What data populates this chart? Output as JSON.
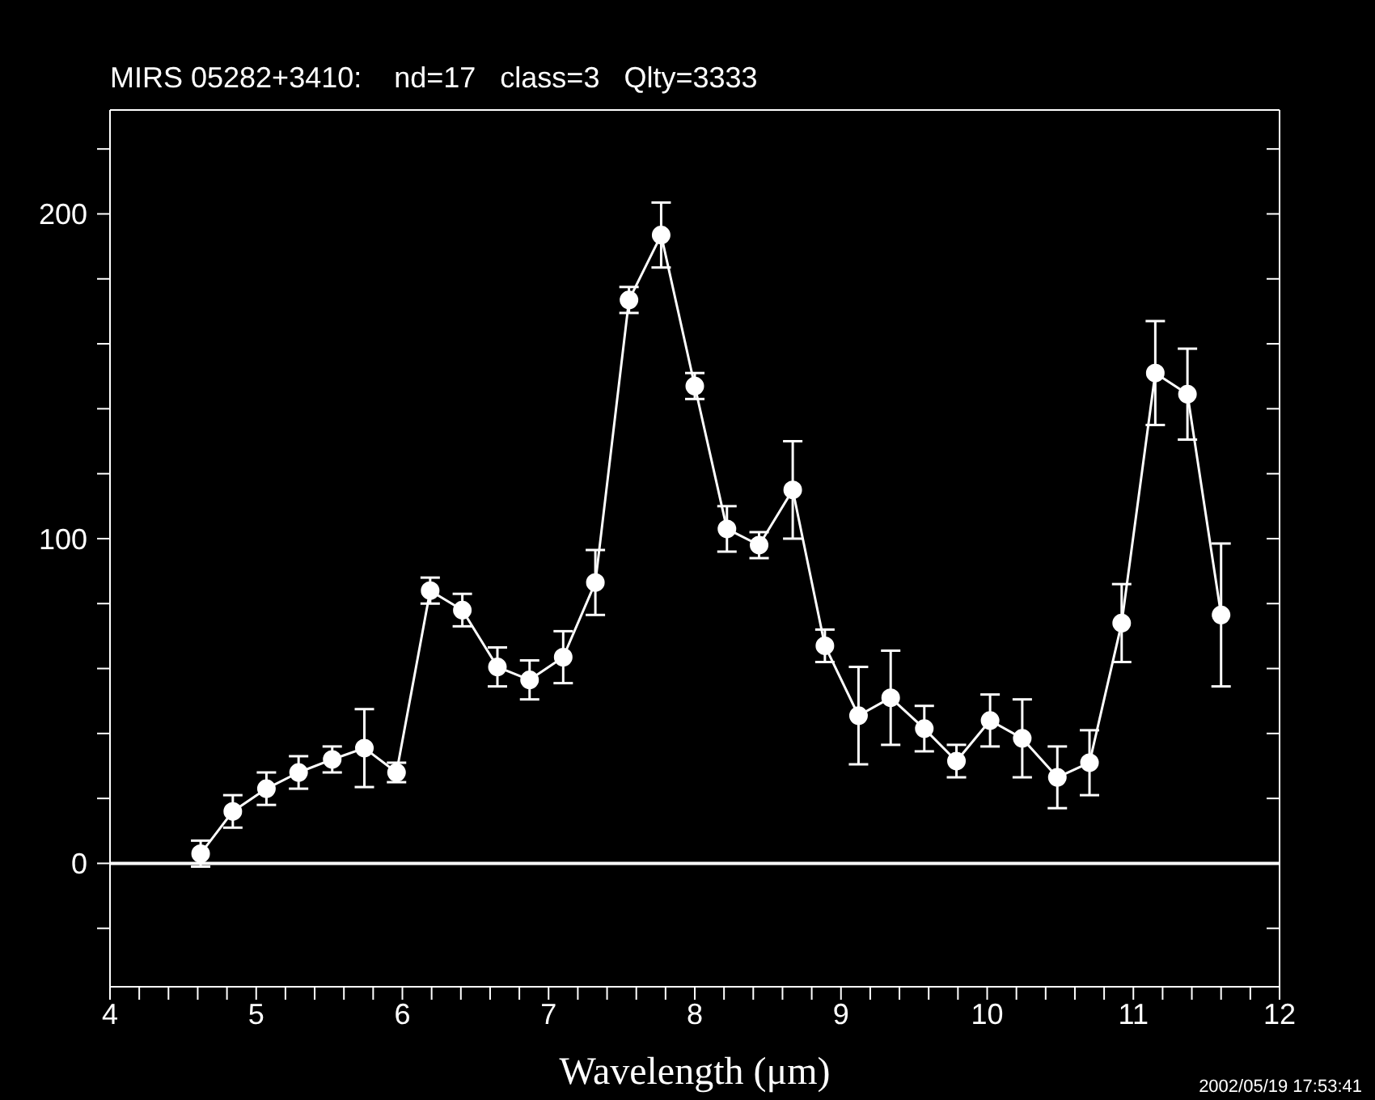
{
  "chart_data": {
    "type": "line",
    "title": "MIRS 05282+3410:    nd=17   class=3   Qlty=3333",
    "xlabel": "Wavelength (μm)",
    "annotations": [
      "2002/05/19 17:53:41"
    ],
    "x": [
      4.62,
      4.84,
      5.07,
      5.29,
      5.52,
      5.74,
      5.96,
      6.19,
      6.41,
      6.65,
      6.87,
      7.1,
      7.32,
      7.55,
      7.77,
      8.0,
      8.22,
      8.44,
      8.67,
      8.89,
      9.12,
      9.34,
      9.57,
      9.79,
      10.02,
      10.24,
      10.48,
      10.7,
      10.92,
      11.15,
      11.37,
      11.6
    ],
    "series": [
      {
        "color": "#ffffff",
        "values": [
          3,
          16,
          23,
          28,
          32,
          35.5,
          28,
          84,
          78,
          60.5,
          56.5,
          63.5,
          86.5,
          173.5,
          193.5,
          147,
          103,
          98,
          115,
          67,
          45.5,
          51,
          41.5,
          31.5,
          44,
          38.5,
          26.5,
          31,
          74,
          151,
          144.5,
          76.5
        ],
        "errors": [
          4,
          5,
          5,
          5,
          4,
          12,
          3,
          4,
          5,
          6,
          6,
          8,
          10,
          4,
          10,
          4,
          7,
          4,
          15,
          5,
          15,
          14.5,
          7,
          5,
          8,
          12,
          9.5,
          10,
          12,
          16,
          14,
          22
        ]
      }
    ],
    "xlim": [
      4,
      12
    ],
    "xticks": [
      4,
      {
        "value": 4.2,
        "label": null
      },
      {
        "value": 4.4,
        "label": null
      },
      {
        "value": 4.6,
        "label": null
      },
      {
        "value": 4.8,
        "label": null
      },
      5,
      {
        "value": 5.2,
        "label": null
      },
      {
        "value": 5.4,
        "label": null
      },
      {
        "value": 5.6,
        "label": null
      },
      {
        "value": 5.8,
        "label": null
      },
      6,
      {
        "value": 6.2,
        "label": null
      },
      {
        "value": 6.4,
        "label": null
      },
      {
        "value": 6.6,
        "label": null
      },
      {
        "value": 6.8,
        "label": null
      },
      7,
      {
        "value": 7.2,
        "label": null
      },
      {
        "value": 7.4,
        "label": null
      },
      {
        "value": 7.6,
        "label": null
      },
      {
        "value": 7.8,
        "label": null
      },
      8,
      {
        "value": 8.2,
        "label": null
      },
      {
        "value": 8.4,
        "label": null
      },
      {
        "value": 8.6,
        "label": null
      },
      {
        "value": 8.8,
        "label": null
      },
      9,
      {
        "value": 9.2,
        "label": null
      },
      {
        "value": 9.4,
        "label": null
      },
      {
        "value": 9.6,
        "label": null
      },
      {
        "value": 9.8,
        "label": null
      },
      10,
      {
        "value": 10.2,
        "label": null
      },
      {
        "value": 10.4,
        "label": null
      },
      {
        "value": 10.6,
        "label": null
      },
      {
        "value": 10.8,
        "label": null
      },
      11,
      {
        "value": 11.2,
        "label": null
      },
      {
        "value": 11.4,
        "label": null
      },
      {
        "value": 11.6,
        "label": null
      },
      {
        "value": 11.8,
        "label": null
      },
      12
    ],
    "ylim": [
      -38,
      232
    ],
    "yticks": [
      {
        "value": -20,
        "label": null
      },
      0,
      {
        "value": 20,
        "label": null
      },
      {
        "value": 40,
        "label": null
      },
      {
        "value": 60,
        "label": null
      },
      {
        "value": 80,
        "label": null
      },
      100,
      {
        "value": 120,
        "label": null
      },
      {
        "value": 140,
        "label": null
      },
      {
        "value": 160,
        "label": null
      },
      {
        "value": 180,
        "label": null
      },
      200,
      {
        "value": 220,
        "label": null
      }
    ],
    "ref_lines": [
      {
        "axis": "y",
        "value": 0,
        "color": "#ffffff"
      }
    ],
    "marker": "circle",
    "line_style": "solid"
  }
}
